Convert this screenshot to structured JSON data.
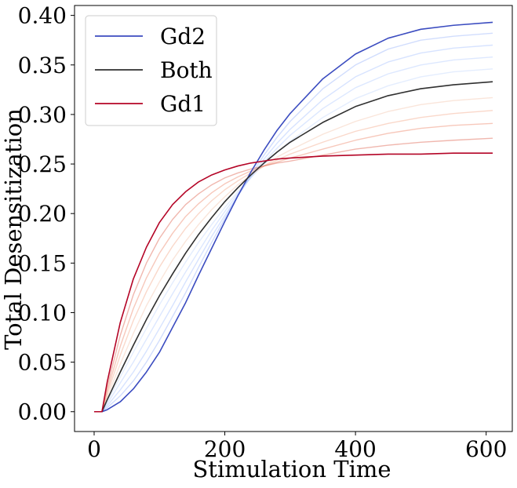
{
  "chart_data": {
    "type": "line",
    "title": "",
    "xlabel": "Stimulation Time",
    "ylabel": "Total Desensitization",
    "xlim": [
      -30,
      640
    ],
    "ylim": [
      -0.02,
      0.41
    ],
    "x_ticks": [
      0,
      200,
      400,
      600
    ],
    "x_tick_labels": [
      "0",
      "200",
      "400",
      "600"
    ],
    "y_ticks": [
      0.0,
      0.05,
      0.1,
      0.15,
      0.2,
      0.25,
      0.3,
      0.35,
      0.4
    ],
    "y_tick_labels": [
      "0.00",
      "0.05",
      "0.10",
      "0.15",
      "0.20",
      "0.25",
      "0.30",
      "0.35",
      "0.40"
    ],
    "grid": false,
    "legend": {
      "position": "top-left"
    },
    "x": [
      0,
      10,
      12,
      20,
      40,
      60,
      80,
      100,
      120,
      140,
      160,
      180,
      200,
      220,
      240,
      260,
      280,
      300,
      350,
      400,
      450,
      500,
      550,
      610
    ],
    "series": [
      {
        "name": "Gd2",
        "legend": true,
        "color": "#3b4cc0",
        "opacity": 1.0,
        "width": 1.6,
        "values": [
          0,
          0,
          0.0,
          0.002,
          0.01,
          0.023,
          0.04,
          0.06,
          0.085,
          0.11,
          0.138,
          0.165,
          0.192,
          0.218,
          0.242,
          0.264,
          0.284,
          0.301,
          0.336,
          0.361,
          0.377,
          0.386,
          0.39,
          0.393
        ]
      },
      {
        "name": "",
        "legend": false,
        "color": "#7b9ff9",
        "opacity": 0.35,
        "width": 1.4,
        "values": [
          0,
          0,
          0.0,
          0.004,
          0.016,
          0.031,
          0.05,
          0.072,
          0.096,
          0.12,
          0.146,
          0.171,
          0.195,
          0.218,
          0.239,
          0.259,
          0.277,
          0.293,
          0.326,
          0.35,
          0.366,
          0.375,
          0.379,
          0.382
        ]
      },
      {
        "name": "",
        "legend": false,
        "color": "#8db0fe",
        "opacity": 0.35,
        "width": 1.4,
        "values": [
          0,
          0,
          0.0,
          0.006,
          0.022,
          0.04,
          0.061,
          0.084,
          0.107,
          0.131,
          0.154,
          0.177,
          0.198,
          0.218,
          0.237,
          0.255,
          0.271,
          0.285,
          0.315,
          0.338,
          0.353,
          0.362,
          0.367,
          0.37
        ]
      },
      {
        "name": "",
        "legend": false,
        "color": "#9ebeff",
        "opacity": 0.35,
        "width": 1.4,
        "values": [
          0,
          0,
          0.0,
          0.008,
          0.029,
          0.05,
          0.073,
          0.096,
          0.119,
          0.141,
          0.162,
          0.183,
          0.202,
          0.22,
          0.237,
          0.252,
          0.266,
          0.279,
          0.306,
          0.327,
          0.341,
          0.35,
          0.355,
          0.358
        ]
      },
      {
        "name": "",
        "legend": false,
        "color": "#b2ccfb",
        "opacity": 0.35,
        "width": 1.4,
        "values": [
          0,
          0,
          0.0,
          0.01,
          0.035,
          0.06,
          0.084,
          0.108,
          0.13,
          0.151,
          0.171,
          0.189,
          0.206,
          0.222,
          0.236,
          0.25,
          0.262,
          0.273,
          0.297,
          0.316,
          0.329,
          0.338,
          0.343,
          0.346
        ]
      },
      {
        "name": "Both",
        "legend": true,
        "color": "#303030",
        "opacity": 1.0,
        "width": 1.6,
        "values": [
          0,
          0,
          0.0,
          0.012,
          0.04,
          0.067,
          0.093,
          0.117,
          0.139,
          0.16,
          0.179,
          0.196,
          0.212,
          0.226,
          0.239,
          0.251,
          0.262,
          0.272,
          0.292,
          0.308,
          0.319,
          0.326,
          0.33,
          0.333
        ]
      },
      {
        "name": "",
        "legend": false,
        "color": "#f4c5ad",
        "opacity": 0.45,
        "width": 1.4,
        "values": [
          0,
          0,
          0.0,
          0.015,
          0.048,
          0.079,
          0.107,
          0.131,
          0.153,
          0.172,
          0.189,
          0.204,
          0.217,
          0.229,
          0.239,
          0.248,
          0.257,
          0.264,
          0.28,
          0.293,
          0.303,
          0.31,
          0.314,
          0.317
        ]
      },
      {
        "name": "",
        "legend": false,
        "color": "#f5a889",
        "opacity": 0.45,
        "width": 1.4,
        "values": [
          0,
          0,
          0.0,
          0.018,
          0.057,
          0.092,
          0.121,
          0.146,
          0.167,
          0.185,
          0.2,
          0.213,
          0.224,
          0.233,
          0.241,
          0.248,
          0.254,
          0.26,
          0.272,
          0.283,
          0.291,
          0.297,
          0.301,
          0.304
        ]
      },
      {
        "name": "",
        "legend": false,
        "color": "#ee8669",
        "opacity": 0.45,
        "width": 1.4,
        "values": [
          0,
          0,
          0.0,
          0.021,
          0.066,
          0.104,
          0.135,
          0.16,
          0.18,
          0.197,
          0.21,
          0.221,
          0.23,
          0.237,
          0.243,
          0.248,
          0.252,
          0.256,
          0.265,
          0.274,
          0.281,
          0.286,
          0.289,
          0.291
        ]
      },
      {
        "name": "",
        "legend": false,
        "color": "#dd5f4b",
        "opacity": 0.45,
        "width": 1.4,
        "values": [
          0,
          0,
          0.0,
          0.025,
          0.077,
          0.118,
          0.15,
          0.175,
          0.194,
          0.209,
          0.22,
          0.229,
          0.236,
          0.241,
          0.245,
          0.248,
          0.251,
          0.253,
          0.259,
          0.265,
          0.269,
          0.272,
          0.274,
          0.276
        ]
      },
      {
        "name": "Gd1",
        "legend": true,
        "color": "#b40426",
        "opacity": 1.0,
        "width": 1.6,
        "values": [
          0,
          0,
          0.0,
          0.03,
          0.09,
          0.134,
          0.166,
          0.191,
          0.209,
          0.222,
          0.232,
          0.239,
          0.244,
          0.248,
          0.251,
          0.253,
          0.255,
          0.256,
          0.258,
          0.259,
          0.26,
          0.26,
          0.261,
          0.261
        ]
      }
    ]
  }
}
